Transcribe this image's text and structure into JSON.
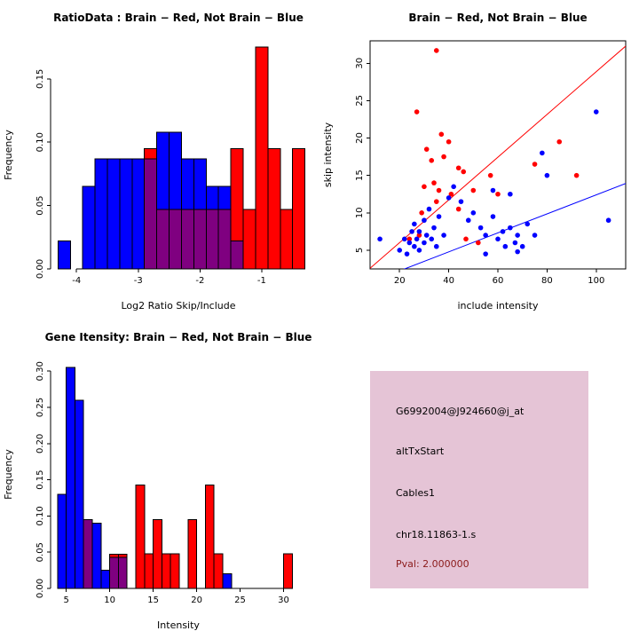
{
  "figure": {
    "background_color": "#FFFFFF",
    "layout": "2x2-grid"
  },
  "info_panel": {
    "background_color": "#E5C4D6",
    "lines": [
      {
        "name": "probe-id",
        "text": "G6992004@J924660@j_at",
        "color": "#000000"
      },
      {
        "name": "event-type",
        "text": "altTxStart",
        "color": "#000000"
      },
      {
        "name": "gene-name",
        "text": "Cables1",
        "color": "#000000"
      },
      {
        "name": "location",
        "text": "chr18.11863-1.s",
        "color": "#000000"
      },
      {
        "name": "pvalue",
        "text": "Pval: 2.000000",
        "color": "#8B1A1A"
      }
    ]
  },
  "chart_data": [
    {
      "type": "histogram",
      "position": "top-left",
      "title": "RatioData : Brain − Red, Not Brain − Blue",
      "xlabel": "Log2 Ratio Skip/Include",
      "ylabel": "Frequency",
      "xlim": [
        -4.42,
        -0.28
      ],
      "ylim": [
        0,
        0.18
      ],
      "xticks": [
        -4,
        -3,
        -2,
        -1
      ],
      "xtick_labels": [
        "-4",
        "-3",
        "-2",
        "-1"
      ],
      "yticks": [
        0,
        0.05,
        0.1,
        0.15
      ],
      "ytick_labels": [
        "0.00",
        "0.05",
        "0.10",
        "0.15"
      ],
      "bin_start": -4.3,
      "bin_width": 0.2,
      "overlap_color": "#7F0080",
      "series": [
        {
          "name": "not-brain-blue",
          "color": "#0000FF",
          "values": [
            0.022,
            0,
            0.065,
            0.087,
            0.087,
            0.087,
            0.087,
            0.087,
            0.108,
            0.108,
            0.087,
            0.087,
            0.065,
            0.065,
            0.022,
            0,
            0,
            0,
            0,
            0
          ]
        },
        {
          "name": "brain-red",
          "color": "#FF0000",
          "values": [
            0,
            0,
            0,
            0,
            0,
            0,
            0,
            0.095,
            0.047,
            0.047,
            0.047,
            0.047,
            0.047,
            0.047,
            0.095,
            0.047,
            0.175,
            0.095,
            0.047,
            0.095
          ]
        }
      ]
    },
    {
      "type": "scatter",
      "position": "top-right",
      "title": "Brain − Red, Not Brain − Blue",
      "xlabel": "include intensity",
      "ylabel": "skip intensity",
      "xlim": [
        8,
        112
      ],
      "ylim": [
        2.5,
        33
      ],
      "xticks": [
        20,
        40,
        60,
        80,
        100
      ],
      "xtick_labels": [
        "20",
        "40",
        "60",
        "80",
        "100"
      ],
      "yticks": [
        5,
        10,
        15,
        20,
        25,
        30
      ],
      "ytick_labels": [
        "5",
        "10",
        "15",
        "20",
        "25",
        "30"
      ],
      "lines": [
        {
          "name": "brain-fit-line",
          "color": "#FF0000",
          "slope": 0.2857,
          "intercept": 0.3
        },
        {
          "name": "not-brain-fit-line",
          "color": "#0000FF",
          "slope": 0.127,
          "intercept": -0.3
        }
      ],
      "series": [
        {
          "name": "brain-red",
          "color": "#FF0000",
          "points": [
            [
              27,
              23.5
            ],
            [
              35,
              31.7
            ],
            [
              37,
              20.5
            ],
            [
              31,
              18.5
            ],
            [
              33,
              17
            ],
            [
              38,
              17.5
            ],
            [
              40,
              19.5
            ],
            [
              44,
              16
            ],
            [
              34,
              14
            ],
            [
              30,
              13.5
            ],
            [
              36,
              13
            ],
            [
              46,
              15.5
            ],
            [
              50,
              13
            ],
            [
              41,
              12.5
            ],
            [
              60,
              12.5
            ],
            [
              85,
              19.5
            ],
            [
              75,
              16.5
            ],
            [
              92,
              15
            ],
            [
              47,
              6.5
            ],
            [
              52,
              6
            ],
            [
              28,
              7
            ],
            [
              24,
              6.5
            ],
            [
              57,
              15
            ],
            [
              44,
              10.5
            ],
            [
              29,
              10
            ],
            [
              35,
              11.5
            ]
          ]
        },
        {
          "name": "not-brain-blue",
          "color": "#0000FF",
          "points": [
            [
              12,
              6.5
            ],
            [
              20,
              5
            ],
            [
              22,
              6.5
            ],
            [
              23,
              4.5
            ],
            [
              24,
              6
            ],
            [
              25,
              7.5
            ],
            [
              26,
              5.5
            ],
            [
              26,
              8.5
            ],
            [
              27,
              6.5
            ],
            [
              28,
              5
            ],
            [
              28,
              7.5
            ],
            [
              30,
              6
            ],
            [
              30,
              9
            ],
            [
              31,
              7
            ],
            [
              32,
              10.5
            ],
            [
              33,
              6.5
            ],
            [
              34,
              8
            ],
            [
              35,
              5.5
            ],
            [
              36,
              9.5
            ],
            [
              38,
              7
            ],
            [
              40,
              12
            ],
            [
              42,
              13.5
            ],
            [
              45,
              11.5
            ],
            [
              48,
              9
            ],
            [
              50,
              10
            ],
            [
              53,
              8
            ],
            [
              55,
              7
            ],
            [
              58,
              9.5
            ],
            [
              60,
              6.5
            ],
            [
              62,
              7.5
            ],
            [
              63,
              5.5
            ],
            [
              65,
              8
            ],
            [
              67,
              6
            ],
            [
              68,
              7
            ],
            [
              70,
              5.5
            ],
            [
              72,
              8.5
            ],
            [
              75,
              7
            ],
            [
              78,
              18
            ],
            [
              80,
              15
            ],
            [
              100,
              23.5
            ],
            [
              105,
              9
            ],
            [
              65,
              12.5
            ],
            [
              58,
              13
            ],
            [
              55,
              4.5
            ],
            [
              68,
              4.8
            ]
          ]
        }
      ]
    },
    {
      "type": "histogram",
      "position": "bottom-left",
      "title": "Gene Itensity: Brain − Red, Not Brain − Blue",
      "xlabel": "Intensity",
      "ylabel": "Frequency",
      "xlim": [
        3.2,
        32.6
      ],
      "ylim": [
        0,
        0.315
      ],
      "xticks": [
        5,
        10,
        15,
        20,
        25,
        30
      ],
      "xtick_labels": [
        "5",
        "10",
        "15",
        "20",
        "25",
        "30"
      ],
      "yticks": [
        0,
        0.05,
        0.1,
        0.15,
        0.2,
        0.25,
        0.3
      ],
      "ytick_labels": [
        "0.00",
        "0.05",
        "0.10",
        "0.15",
        "0.20",
        "0.25",
        "0.30"
      ],
      "bin_start": 4,
      "bin_width": 1,
      "overlap_color": "#7F0080",
      "series": [
        {
          "name": "not-brain-blue",
          "color": "#0000FF",
          "values": [
            0.13,
            0.305,
            0.26,
            0.095,
            0.09,
            0.025,
            0.043,
            0.043,
            0,
            0,
            0,
            0,
            0,
            0,
            0,
            0,
            0,
            0,
            0,
            0.02,
            0,
            0,
            0,
            0,
            0,
            0,
            0
          ]
        },
        {
          "name": "brain-red",
          "color": "#FF0000",
          "values": [
            0,
            0,
            0,
            0.095,
            0,
            0,
            0.047,
            0.047,
            0,
            0.143,
            0.048,
            0.095,
            0.048,
            0.048,
            0,
            0.095,
            0,
            0.143,
            0.048,
            0,
            0,
            0,
            0,
            0,
            0,
            0,
            0.048
          ]
        }
      ]
    }
  ]
}
